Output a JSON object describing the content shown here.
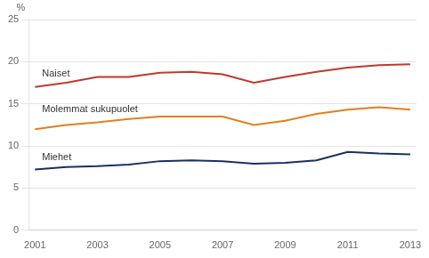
{
  "chart_data": {
    "type": "line",
    "y_label": "%",
    "x": [
      2001,
      2002,
      2003,
      2004,
      2005,
      2006,
      2007,
      2008,
      2009,
      2010,
      2011,
      2012,
      2013
    ],
    "series": [
      {
        "name": "Naiset",
        "color": "#c0392b",
        "values": [
          17.0,
          17.5,
          18.2,
          18.2,
          18.7,
          18.8,
          18.5,
          17.5,
          18.2,
          18.8,
          19.3,
          19.6,
          19.7
        ]
      },
      {
        "name": "Molemmat sukupuolet",
        "color": "#e08020",
        "values": [
          12.0,
          12.5,
          12.8,
          13.2,
          13.5,
          13.5,
          13.5,
          12.5,
          13.0,
          13.8,
          14.3,
          14.6,
          14.3
        ]
      },
      {
        "name": "Miehet",
        "color": "#1a3060",
        "values": [
          7.2,
          7.5,
          7.6,
          7.8,
          8.2,
          8.3,
          8.2,
          7.9,
          8.0,
          8.3,
          9.3,
          9.1,
          9.0
        ]
      }
    ],
    "xlim": [
      2000.8,
      2013.2
    ],
    "xticks": [
      2001,
      2003,
      2005,
      2007,
      2009,
      2011,
      2013
    ],
    "ylim": [
      0,
      25
    ],
    "yticks": [
      0,
      5,
      10,
      15,
      20,
      25
    ],
    "grid": true
  }
}
